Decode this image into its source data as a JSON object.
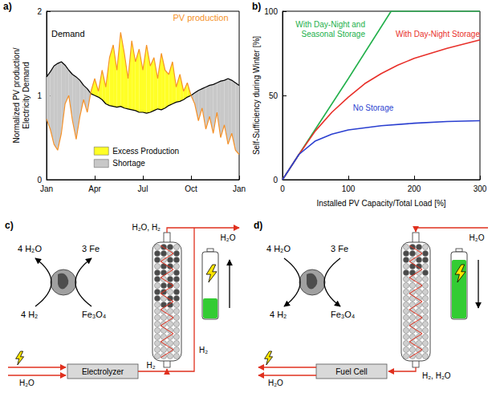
{
  "chart_data": [
    {
      "type": "line",
      "title": "a)",
      "categories": [
        "Jan",
        null,
        null,
        null,
        null,
        null,
        null,
        null,
        null,
        null,
        null,
        null,
        null,
        "Apr",
        null,
        null,
        null,
        null,
        null,
        null,
        null,
        null,
        null,
        null,
        null,
        null,
        "Jul",
        null,
        null,
        null,
        null,
        null,
        null,
        null,
        null,
        null,
        null,
        null,
        null,
        "Oct",
        null,
        null,
        null,
        null,
        null,
        null,
        null,
        null,
        null,
        null,
        null,
        null,
        "Jan"
      ],
      "y_label": "Normalized PV production/ Electricity Demand",
      "ylim": [
        0,
        2
      ],
      "yticks": [
        0,
        1,
        2
      ],
      "grid": false,
      "legend": "bottom",
      "series": [
        {
          "name": "Demand",
          "color": "#000000",
          "values": [
            1.22,
            1.28,
            1.35,
            1.38,
            1.4,
            1.36,
            1.3,
            1.25,
            1.22,
            1.18,
            1.12,
            1.08,
            1.02,
            1.0,
            0.98,
            0.95,
            0.9,
            0.88,
            0.87,
            0.86,
            0.87,
            0.85,
            0.84,
            0.83,
            0.82,
            0.8,
            0.8,
            0.79,
            0.8,
            0.82,
            0.84,
            0.83,
            0.85,
            0.88,
            0.9,
            0.92,
            0.93,
            0.95,
            0.98,
            1.0,
            1.03,
            1.06,
            1.08,
            1.1,
            1.12,
            1.13,
            1.15,
            1.17,
            1.18,
            1.2,
            1.18,
            1.15,
            1.12
          ]
        },
        {
          "name": "PV production",
          "color": "#f5922a",
          "values": [
            0.72,
            0.6,
            0.42,
            0.35,
            0.55,
            0.9,
            1.0,
            0.7,
            0.48,
            0.75,
            0.95,
            0.8,
            1.05,
            1.2,
            1.05,
            1.3,
            1.1,
            1.45,
            1.6,
            1.3,
            1.75,
            1.5,
            1.2,
            1.65,
            1.4,
            1.55,
            1.3,
            1.6,
            1.35,
            1.45,
            1.2,
            1.5,
            1.3,
            1.25,
            1.4,
            1.1,
            1.25,
            1.05,
            1.15,
            1.0,
            0.9,
            0.7,
            0.85,
            0.6,
            0.75,
            0.55,
            0.8,
            0.5,
            0.65,
            0.42,
            0.55,
            0.35,
            0.3
          ]
        }
      ],
      "fills": [
        {
          "name": "Excess Production",
          "color": "#ffff26",
          "between": [
            "PV production",
            "Demand"
          ]
        },
        {
          "name": "Shortage",
          "color": "#c8c8c8",
          "between": [
            "Demand",
            "PV production"
          ]
        }
      ]
    },
    {
      "type": "line",
      "title": "b)",
      "x_label": "Installed PV Capacity/Total Load [%]",
      "y_label": "Self-Sufficiency during Winter [%]",
      "xlim": [
        0,
        300
      ],
      "xticks": [
        0,
        100,
        200,
        300
      ],
      "ylim": [
        0,
        100
      ],
      "yticks": [
        0,
        50,
        100
      ],
      "grid": false,
      "series": [
        {
          "name": "With Day-Night and Seasonal Storage",
          "color": "#22b04b",
          "x": [
            0,
            50,
            100,
            165,
            300
          ],
          "values": [
            0,
            30,
            60,
            100,
            100
          ]
        },
        {
          "name": "With Day-Night Storage",
          "color": "#e8302a",
          "x": [
            0,
            25,
            50,
            75,
            100,
            125,
            150,
            175,
            200,
            250,
            300
          ],
          "values": [
            0,
            15,
            29,
            40,
            49,
            57,
            63,
            68,
            72,
            78,
            83
          ]
        },
        {
          "name": "No Storage",
          "color": "#2a3fd0",
          "x": [
            0,
            25,
            50,
            75,
            100,
            150,
            200,
            250,
            300
          ],
          "values": [
            0,
            15,
            23,
            27,
            29.5,
            32,
            33.5,
            34.5,
            35
          ]
        }
      ]
    }
  ],
  "diagrams": [
    {
      "label": "c)",
      "mode": "charge",
      "reaction": {
        "top_left": "4 H₂O",
        "top_right": "3 Fe",
        "bottom_left": "4 H₂",
        "bottom_right": "Fe₃O₄"
      },
      "unit": "Electrolyzer",
      "unit_water": "H₂O",
      "bottom_stream": "H₂",
      "neck_label": "H₂O, H₂",
      "top_stream": "H₂O",
      "return": "H₂"
    },
    {
      "label": "d)",
      "mode": "discharge",
      "reaction": {
        "top_left": "4 H₂O",
        "top_right": "3 Fe",
        "bottom_left": "4 H₂",
        "bottom_right": "Fe₃O₄"
      },
      "unit": "Fuel Cell",
      "unit_water": "H₂O",
      "bottom_stream": "H₂, H₂O",
      "top_stream": "H₂O"
    }
  ]
}
